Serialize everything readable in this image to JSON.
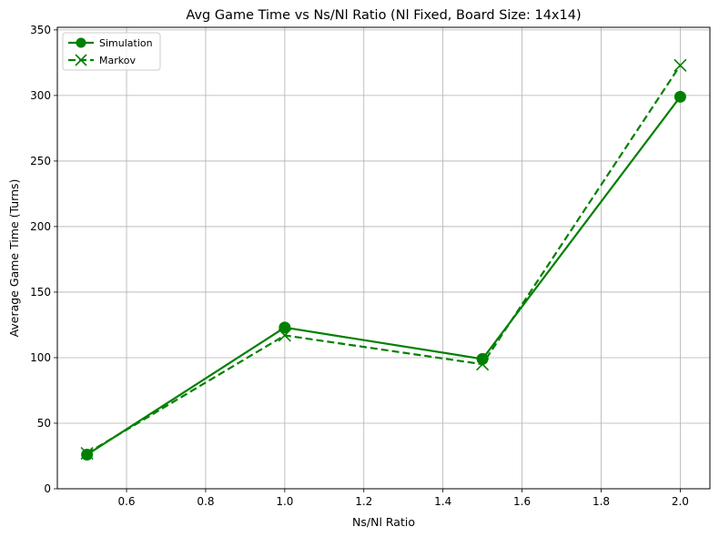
{
  "chart_data": {
    "type": "line",
    "title": "Avg Game Time vs Ns/Nl Ratio (Nl Fixed, Board Size: 14x14)",
    "xlabel": "Ns/Nl Ratio",
    "ylabel": "Average Game Time (Turns)",
    "xlim": [
      0.425,
      2.075
    ],
    "ylim": [
      0,
      352
    ],
    "xticks": [
      0.6,
      0.8,
      1.0,
      1.2,
      1.4,
      1.6,
      1.8,
      2.0
    ],
    "xtick_labels": [
      "0.6",
      "0.8",
      "1.0",
      "1.2",
      "1.4",
      "1.6",
      "1.8",
      "2.0"
    ],
    "yticks": [
      0,
      50,
      100,
      150,
      200,
      250,
      300,
      350
    ],
    "ytick_labels": [
      "0",
      "50",
      "100",
      "150",
      "200",
      "250",
      "300",
      "350"
    ],
    "grid": true,
    "legend_position": "top-left",
    "x": [
      0.5,
      1.0,
      1.5,
      2.0
    ],
    "series": [
      {
        "name": "Simulation",
        "values": [
          26,
          123,
          99,
          299
        ],
        "color": "#008000",
        "linestyle": "solid",
        "marker": "circle"
      },
      {
        "name": "Markov",
        "values": [
          27,
          117,
          95,
          323
        ],
        "color": "#008000",
        "linestyle": "dashed",
        "marker": "x"
      }
    ]
  }
}
